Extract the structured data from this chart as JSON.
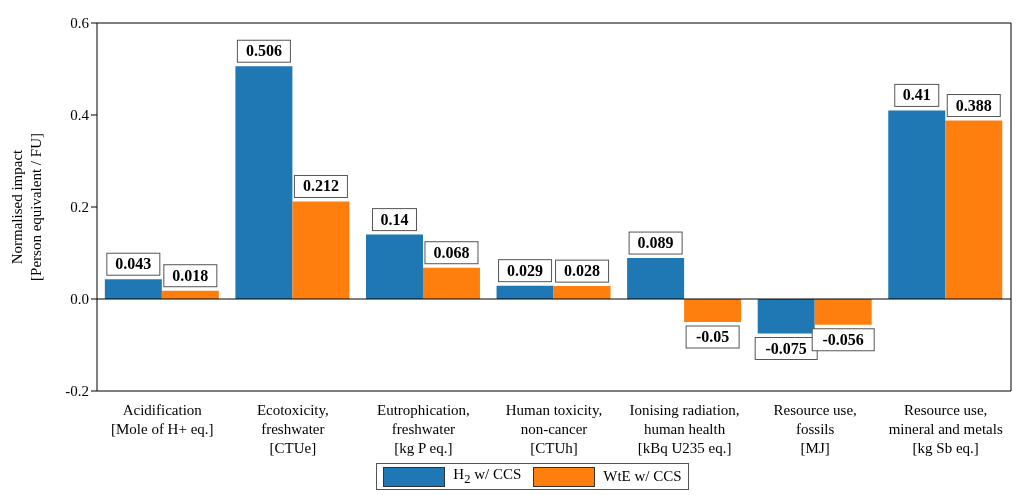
{
  "chart_data": {
    "type": "bar",
    "ylabel": "Normalised impact\n[Person equivalent / FU]",
    "categories": [
      "Acidification\n[Mole of H+ eq.]",
      "Ecotoxicity,\nfreshwater\n[CTUe]",
      "Eutrophication,\nfreshwater\n[kg P eq.]",
      "Human toxicity,\nnon-cancer\n[CTUh]",
      "Ionising radiation,\nhuman health\n[kBq U235 eq.]",
      "Resource use,\nfossils\n[MJ]",
      "Resource use,\nmineral and metals\n[kg Sb eq.]"
    ],
    "series": [
      {
        "name": "H$_{2}$ w/ CCS",
        "color": "#1f77b4",
        "values": [
          0.043,
          0.506,
          0.14,
          0.029,
          0.089,
          -0.075,
          0.41
        ]
      },
      {
        "name": "WtE w/ CCS",
        "color": "#ff7f0e",
        "values": [
          0.018,
          0.212,
          0.068,
          0.028,
          -0.05,
          -0.056,
          0.388
        ]
      }
    ],
    "ylim": [
      -0.2,
      0.6
    ],
    "yticks": [
      -0.2,
      {
        "value": 0,
        "label": "0.0"
      },
      0.2,
      0.4,
      0.6
    ],
    "ref_lines": [
      {
        "axis": "y",
        "value": 0,
        "color": "#000000"
      }
    ],
    "data_labels": true,
    "legend": "bottom",
    "grid": false
  }
}
